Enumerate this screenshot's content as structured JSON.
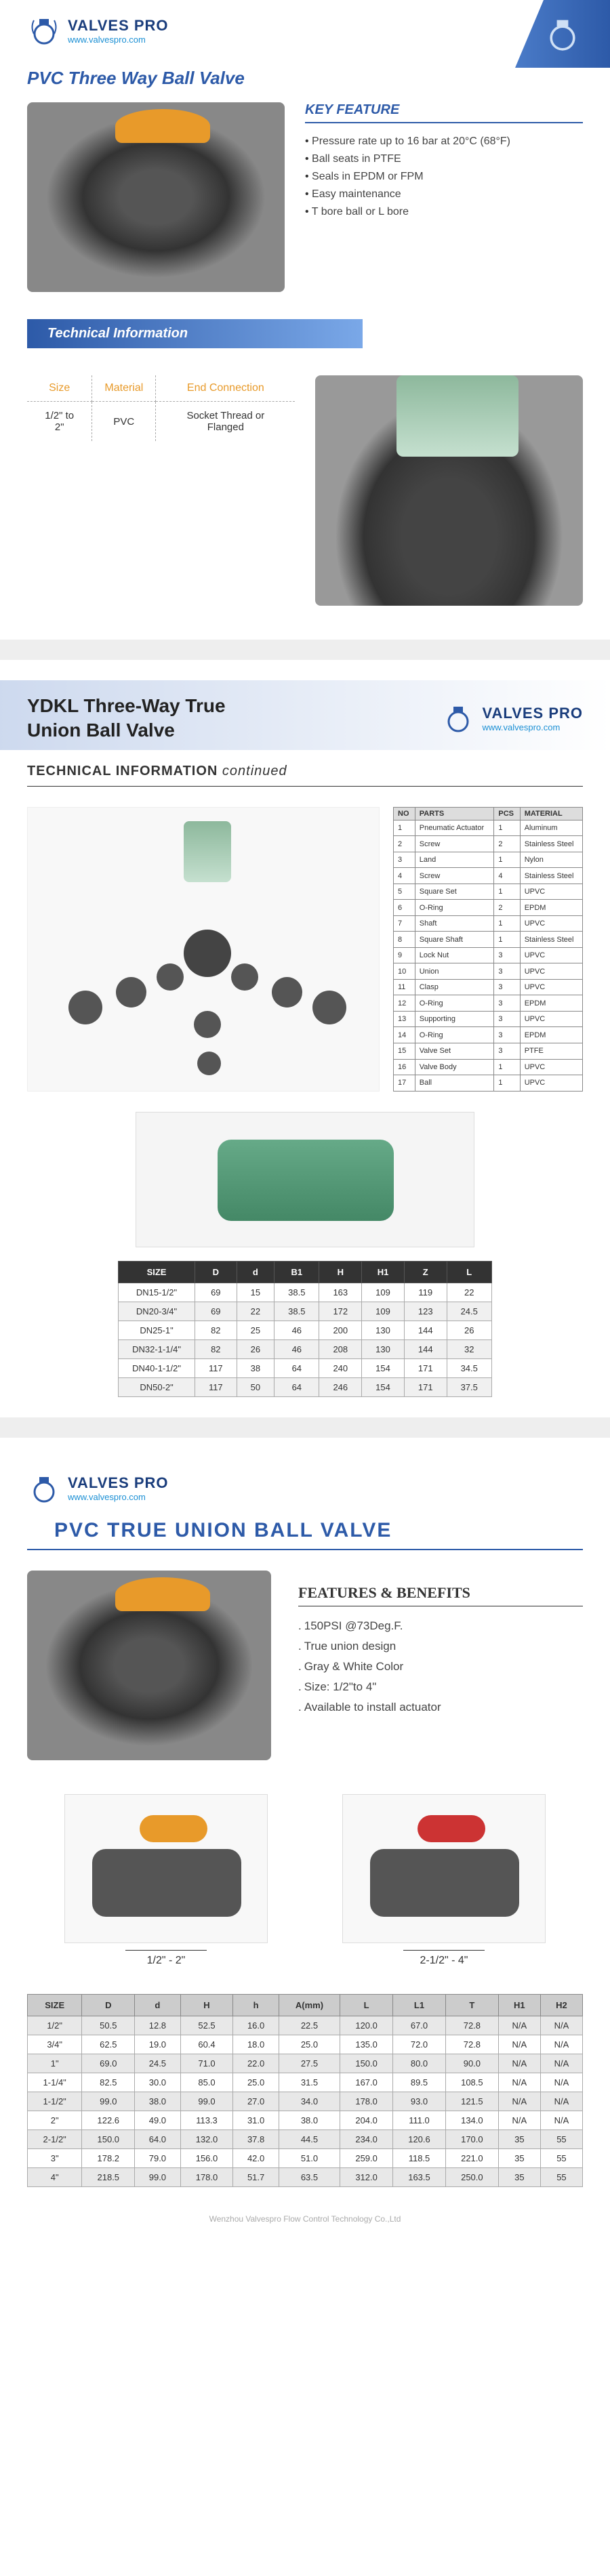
{
  "brand": "VALVES PRO",
  "url": "www.valvespro.com",
  "watermark_text": "Wenzhou Valvespro Flow Control Technology Co.,Ltd",
  "section1": {
    "title": "PVC Three Way Ball Valve",
    "kf_title": "KEY FEATURE",
    "features": [
      "Pressure rate up to 16 bar at 20°C (68°F)",
      "Ball seats in PTFE",
      "Seals in EPDM or FPM",
      "Easy maintenance",
      "T bore ball or L bore"
    ],
    "tech_title": "Technical Information",
    "spec": {
      "headers": [
        "Size",
        "Material",
        "End Connection"
      ],
      "row": [
        "1/2\" to 2\"",
        "PVC",
        "Socket Thread or Flanged"
      ]
    }
  },
  "section2": {
    "title_l1": "YDKL Three-Way True",
    "title_l2": "Union Ball Valve",
    "tech_heading": "TECHNICAL INFORMATION",
    "continued": "continued",
    "parts": {
      "headers": [
        "NO",
        "PARTS",
        "PCS",
        "MATERIAL"
      ],
      "rows": [
        [
          "1",
          "Pneumatic Actuator",
          "1",
          "Aluminum"
        ],
        [
          "2",
          "Screw",
          "2",
          "Stainless Steel"
        ],
        [
          "3",
          "Land",
          "1",
          "Nylon"
        ],
        [
          "4",
          "Screw",
          "4",
          "Stainless Steel"
        ],
        [
          "5",
          "Square Set",
          "1",
          "UPVC"
        ],
        [
          "6",
          "O-Ring",
          "2",
          "EPDM"
        ],
        [
          "7",
          "Shaft",
          "1",
          "UPVC"
        ],
        [
          "8",
          "Square Shaft",
          "1",
          "Stainless Steel"
        ],
        [
          "9",
          "Lock Nut",
          "3",
          "UPVC"
        ],
        [
          "10",
          "Union",
          "3",
          "UPVC"
        ],
        [
          "11",
          "Clasp",
          "3",
          "UPVC"
        ],
        [
          "12",
          "O-Ring",
          "3",
          "EPDM"
        ],
        [
          "13",
          "Supporting",
          "3",
          "UPVC"
        ],
        [
          "14",
          "O-Ring",
          "3",
          "EPDM"
        ],
        [
          "15",
          "Valve Set",
          "3",
          "PTFE"
        ],
        [
          "16",
          "Valve Body",
          "1",
          "UPVC"
        ],
        [
          "17",
          "Ball",
          "1",
          "UPVC"
        ]
      ]
    },
    "dims": {
      "headers": [
        "SIZE",
        "D",
        "d",
        "B1",
        "H",
        "H1",
        "Z",
        "L"
      ],
      "rows": [
        [
          "DN15-1/2\"",
          "69",
          "15",
          "38.5",
          "163",
          "109",
          "119",
          "22"
        ],
        [
          "DN20-3/4\"",
          "69",
          "22",
          "38.5",
          "172",
          "109",
          "123",
          "24.5"
        ],
        [
          "DN25-1\"",
          "82",
          "25",
          "46",
          "200",
          "130",
          "144",
          "26"
        ],
        [
          "DN32-1-1/4\"",
          "82",
          "26",
          "46",
          "208",
          "130",
          "144",
          "32"
        ],
        [
          "DN40-1-1/2\"",
          "117",
          "38",
          "64",
          "240",
          "154",
          "171",
          "34.5"
        ],
        [
          "DN50-2\"",
          "117",
          "50",
          "64",
          "246",
          "154",
          "171",
          "37.5"
        ]
      ]
    }
  },
  "section3": {
    "title": "PVC TRUE UNION BALL VALVE",
    "fb_title": "FEATURES & BENEFITS",
    "benefits": [
      "150PSI @73Deg.F.",
      "True union design",
      "Gray & White Color",
      "Size: 1/2\"to 4\"",
      "Available to install actuator"
    ],
    "range1": "1/2\" - 2\"",
    "range2": "2-1/2\" - 4\"",
    "dims": {
      "headers": [
        "SIZE",
        "D",
        "d",
        "H",
        "h",
        "A(mm)",
        "L",
        "L1",
        "T",
        "H1",
        "H2"
      ],
      "rows": [
        [
          "1/2\"",
          "50.5",
          "12.8",
          "52.5",
          "16.0",
          "22.5",
          "120.0",
          "67.0",
          "72.8",
          "N/A",
          "N/A"
        ],
        [
          "3/4\"",
          "62.5",
          "19.0",
          "60.4",
          "18.0",
          "25.0",
          "135.0",
          "72.0",
          "72.8",
          "N/A",
          "N/A"
        ],
        [
          "1\"",
          "69.0",
          "24.5",
          "71.0",
          "22.0",
          "27.5",
          "150.0",
          "80.0",
          "90.0",
          "N/A",
          "N/A"
        ],
        [
          "1-1/4\"",
          "82.5",
          "30.0",
          "85.0",
          "25.0",
          "31.5",
          "167.0",
          "89.5",
          "108.5",
          "N/A",
          "N/A"
        ],
        [
          "1-1/2\"",
          "99.0",
          "38.0",
          "99.0",
          "27.0",
          "34.0",
          "178.0",
          "93.0",
          "121.5",
          "N/A",
          "N/A"
        ],
        [
          "2\"",
          "122.6",
          "49.0",
          "113.3",
          "31.0",
          "38.0",
          "204.0",
          "111.0",
          "134.0",
          "N/A",
          "N/A"
        ],
        [
          "2-1/2\"",
          "150.0",
          "64.0",
          "132.0",
          "37.8",
          "44.5",
          "234.0",
          "120.6",
          "170.0",
          "35",
          "55"
        ],
        [
          "3\"",
          "178.2",
          "79.0",
          "156.0",
          "42.0",
          "51.0",
          "259.0",
          "118.5",
          "221.0",
          "35",
          "55"
        ],
        [
          "4\"",
          "218.5",
          "99.0",
          "178.0",
          "51.7",
          "63.5",
          "312.0",
          "163.5",
          "250.0",
          "35",
          "55"
        ]
      ]
    }
  }
}
